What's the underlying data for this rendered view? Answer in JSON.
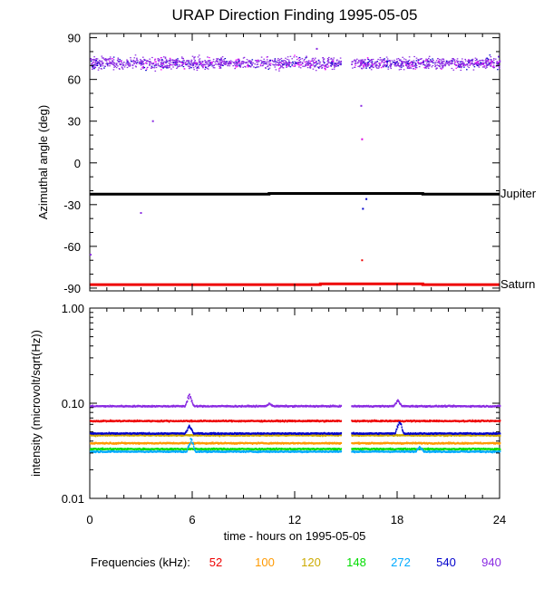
{
  "chart_data": [
    {
      "type": "scatter",
      "title": "URAP Direction Finding  1995-05-05",
      "xlabel": "",
      "ylabel": "Azimuthal angle (deg)",
      "xlim": [
        0,
        24
      ],
      "ylim": [
        -92,
        93
      ],
      "yticks": [
        90,
        60,
        30,
        0,
        -30,
        -60,
        -90
      ],
      "ytick_labels": [
        "90",
        "60",
        "30",
        "0",
        "-30",
        "-60",
        "-90"
      ],
      "grid": false,
      "data_gap_hours": [
        14.7,
        15.3
      ],
      "reference_lines": [
        {
          "name": "Jupiter",
          "color": "#000000",
          "x": [
            0,
            10.5,
            10.5,
            19.5,
            19.5,
            24
          ],
          "y": [
            -22.5,
            -22.5,
            -22,
            -22,
            -22.5,
            -22.5
          ]
        },
        {
          "name": "Saturn",
          "color": "#ee0000",
          "x": [
            0,
            13.5,
            13.5,
            19.5,
            19.5,
            24
          ],
          "y": [
            -87.5,
            -87.5,
            -87,
            -87,
            -87.5,
            -87.5
          ]
        }
      ],
      "scatter_band": {
        "series": "940 kHz",
        "y_center": 72,
        "y_spread": [
          64,
          82
        ],
        "colors": [
          "#8a2be2",
          "#0000cc",
          "#ff00ff"
        ]
      },
      "isolated_points": [
        {
          "x": 3.7,
          "y": 30,
          "color": "#8a2be2"
        },
        {
          "x": 3.0,
          "y": -36,
          "color": "#8a2be2"
        },
        {
          "x": 15.9,
          "y": 41,
          "color": "#8a2be2"
        },
        {
          "x": 15.95,
          "y": 17,
          "color": "#dd00dd"
        },
        {
          "x": 16.0,
          "y": -33,
          "color": "#0000cc"
        },
        {
          "x": 16.2,
          "y": -26,
          "color": "#0000cc"
        },
        {
          "x": 15.95,
          "y": -70,
          "color": "#ee0000"
        },
        {
          "x": 0.05,
          "y": -66,
          "color": "#8a2be2"
        },
        {
          "x": 13.3,
          "y": 82,
          "color": "#8a2be2"
        }
      ]
    },
    {
      "type": "line",
      "xlabel": "time - hours on 1995-05-05",
      "ylabel": "intensity (microvolt/sqrt(Hz))",
      "xlim": [
        0,
        24
      ],
      "ylim": [
        0.01,
        1.0
      ],
      "yscale": "log",
      "yticks": [
        1.0,
        0.1,
        0.01
      ],
      "ytick_labels": [
        "1.00",
        "0.10",
        "0.01"
      ],
      "xticks": [
        0,
        6,
        12,
        18,
        24
      ],
      "xtick_labels": [
        "0",
        "6",
        "12",
        "18",
        "24"
      ],
      "grid": false,
      "data_gap_hours": [
        14.7,
        15.3
      ],
      "series": [
        {
          "name": "52",
          "color": "#ee0000",
          "level": 0.065
        },
        {
          "name": "100",
          "color": "#ff9900",
          "level": 0.038
        },
        {
          "name": "120",
          "color": "#ccaa00",
          "level": 0.046
        },
        {
          "name": "148",
          "color": "#00dd00",
          "level": 0.033
        },
        {
          "name": "272",
          "color": "#00aaff",
          "level": 0.031
        },
        {
          "name": "540",
          "color": "#0000cc",
          "level": 0.048
        },
        {
          "name": "940",
          "color": "#8a2be2",
          "level": 0.093
        }
      ],
      "features": [
        {
          "series": "940",
          "x": 5.8,
          "peak": 0.13
        },
        {
          "series": "940",
          "x": 10.5,
          "peak": 0.1
        },
        {
          "series": "940",
          "x": 18.0,
          "peak": 0.11
        },
        {
          "series": "540",
          "x": 18.1,
          "peak": 0.07
        },
        {
          "series": "540",
          "x": 5.8,
          "peak": 0.06
        },
        {
          "series": "272",
          "x": 5.9,
          "peak": 0.045
        },
        {
          "series": "272",
          "x": 19.3,
          "peak": 0.036
        }
      ]
    }
  ],
  "labels": {
    "jupiter": "Jupiter",
    "saturn": "Saturn"
  },
  "legend": {
    "label": "Frequencies (kHz):",
    "items": [
      {
        "text": "52",
        "color": "#ee0000"
      },
      {
        "text": "100",
        "color": "#ff9900"
      },
      {
        "text": "120",
        "color": "#ccaa00"
      },
      {
        "text": "148",
        "color": "#00dd00"
      },
      {
        "text": "272",
        "color": "#00aaff"
      },
      {
        "text": "540",
        "color": "#0000cc"
      },
      {
        "text": "940",
        "color": "#8a2be2"
      }
    ]
  }
}
